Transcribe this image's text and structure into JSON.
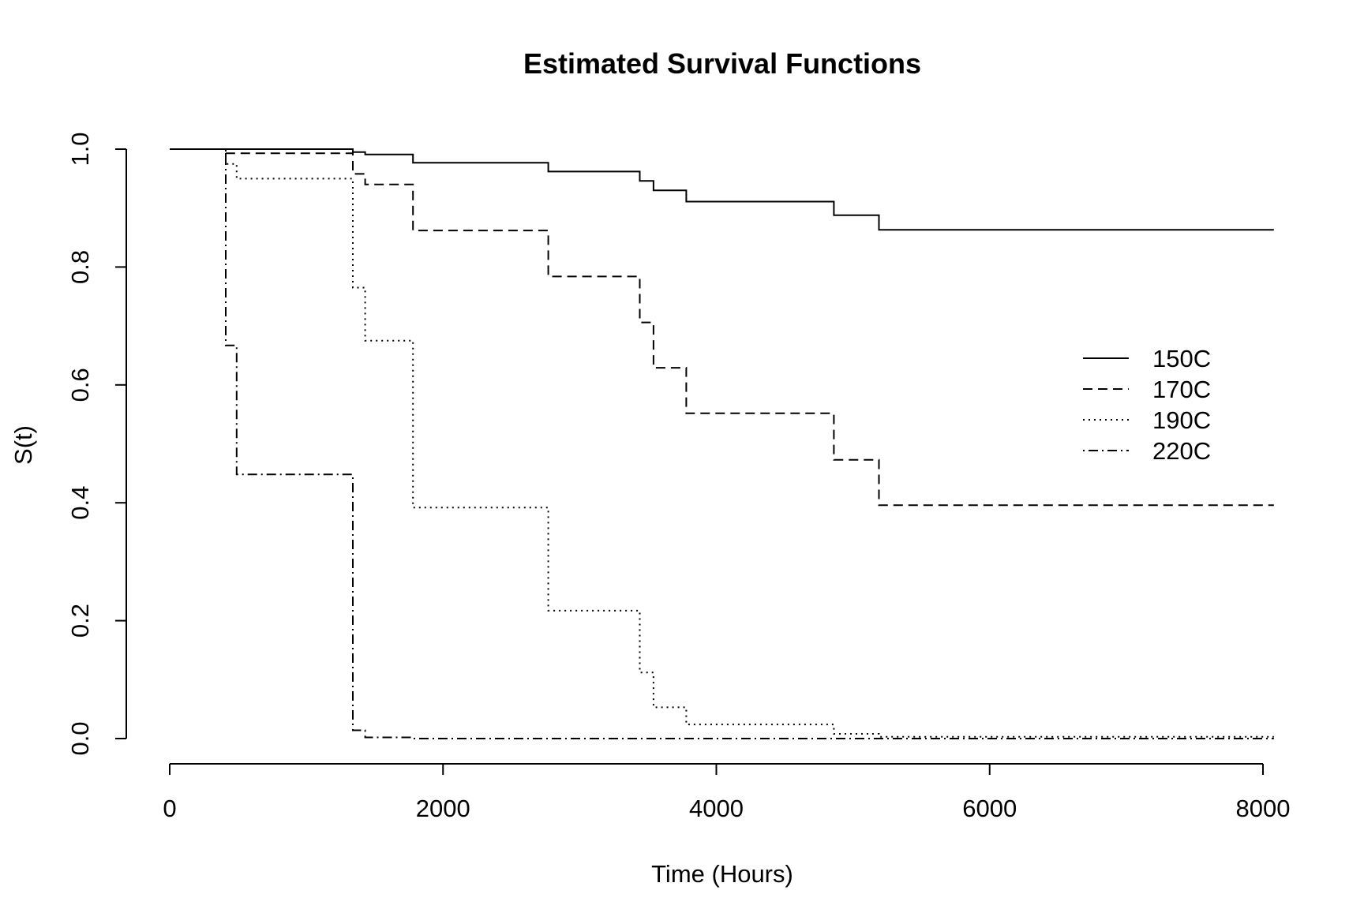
{
  "chart_data": {
    "type": "line",
    "title": "Estimated Survival Functions",
    "xlabel": "Time (Hours)",
    "ylabel": "S(t)",
    "xlim": [
      0,
      8000
    ],
    "ylim": [
      0,
      1
    ],
    "xticks": [
      0,
      2000,
      4000,
      6000,
      8000
    ],
    "yticks": [
      0.0,
      0.2,
      0.4,
      0.6,
      0.8,
      1.0
    ],
    "xtick_labels": [
      "0",
      "2000",
      "4000",
      "6000",
      "8000"
    ],
    "ytick_labels": [
      "0.0",
      "0.2",
      "0.4",
      "0.6",
      "0.8",
      "1.0"
    ],
    "grid": false,
    "legend_position": "right",
    "step": true,
    "x_max": 8080,
    "series": [
      {
        "name": "150C",
        "dash": "solid",
        "x": [
          0,
          1340,
          1430,
          1780,
          2770,
          3440,
          3540,
          3780,
          4860,
          5190,
          8080
        ],
        "y": [
          1.0,
          0.995,
          0.991,
          0.977,
          0.962,
          0.946,
          0.93,
          0.911,
          0.888,
          0.863,
          0.863
        ]
      },
      {
        "name": "170C",
        "dash": "dashed",
        "x": [
          0,
          410,
          1340,
          1430,
          1780,
          2770,
          3440,
          3540,
          3780,
          4860,
          5190,
          8080
        ],
        "y": [
          1.0,
          0.993,
          0.958,
          0.94,
          0.862,
          0.784,
          0.706,
          0.629,
          0.552,
          0.473,
          0.396,
          0.396
        ]
      },
      {
        "name": "190C",
        "dash": "dotted",
        "x": [
          0,
          410,
          490,
          1340,
          1430,
          1780,
          2770,
          3440,
          3540,
          3780,
          4860,
          5190,
          8080
        ],
        "y": [
          1.0,
          0.975,
          0.95,
          0.765,
          0.675,
          0.392,
          0.217,
          0.112,
          0.053,
          0.024,
          0.008,
          0.003,
          0.003
        ]
      },
      {
        "name": "220C",
        "dash": "dotdash",
        "x": [
          0,
          410,
          490,
          1340,
          1430,
          1780,
          8080
        ],
        "y": [
          1.0,
          0.667,
          0.448,
          0.014,
          0.002,
          0.0,
          0.0
        ]
      }
    ]
  }
}
